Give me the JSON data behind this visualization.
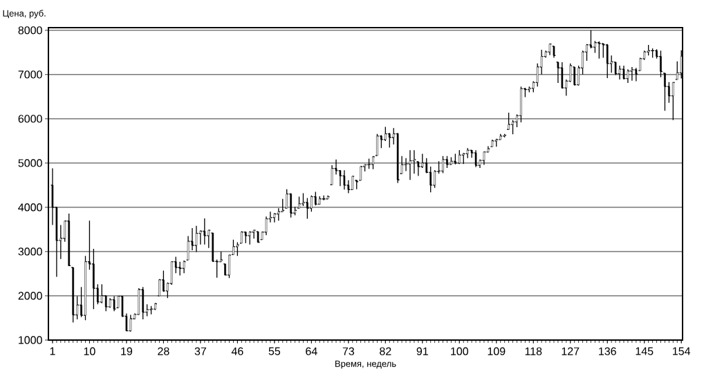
{
  "chart_data": {
    "type": "candlestick",
    "xlabel": "Время, недель",
    "ylabel": "Цена, руб.",
    "xlim": [
      0,
      154.3
    ],
    "ylim": [
      1000,
      8060
    ],
    "xticks": [
      1,
      10,
      19,
      28,
      37,
      46,
      55,
      64,
      73,
      82,
      91,
      100,
      109,
      118,
      127,
      136,
      145,
      154
    ],
    "yticks": [
      1000,
      2000,
      3000,
      4000,
      5000,
      6000,
      7000,
      8000
    ],
    "grid": "y",
    "x": [
      1,
      2,
      3,
      4,
      5,
      6,
      7,
      8,
      9,
      10,
      11,
      12,
      13,
      14,
      15,
      16,
      17,
      18,
      19,
      20,
      21,
      22,
      23,
      24,
      25,
      26,
      27,
      28,
      29,
      30,
      31,
      32,
      33,
      34,
      35,
      36,
      37,
      38,
      39,
      40,
      41,
      42,
      43,
      44,
      45,
      46,
      47,
      48,
      49,
      50,
      51,
      52,
      53,
      54,
      55,
      56,
      57,
      58,
      59,
      60,
      61,
      62,
      63,
      64,
      65,
      66,
      67,
      68,
      69,
      70,
      71,
      72,
      73,
      74,
      75,
      76,
      77,
      78,
      79,
      80,
      81,
      82,
      83,
      84,
      85,
      86,
      87,
      88,
      89,
      90,
      91,
      92,
      93,
      94,
      95,
      96,
      97,
      98,
      99,
      100,
      101,
      102,
      103,
      104,
      105,
      106,
      107,
      108,
      109,
      110,
      111,
      112,
      113,
      114,
      115,
      116,
      117,
      118,
      119,
      120,
      121,
      122,
      123,
      124,
      125,
      126,
      127,
      128,
      129,
      130,
      131,
      132,
      133,
      134,
      135,
      136,
      137,
      138,
      139,
      140,
      141,
      142,
      143,
      144,
      145,
      146,
      147,
      148,
      149,
      150,
      151,
      152,
      153,
      154
    ],
    "ohlc": [
      [
        4500,
        4880,
        3600,
        4000
      ],
      [
        4000,
        4000,
        2430,
        3250
      ],
      [
        3250,
        3600,
        2830,
        3300
      ],
      [
        3300,
        3700,
        3220,
        3690
      ],
      [
        3690,
        3860,
        2670,
        2680
      ],
      [
        2640,
        2640,
        1400,
        1570
      ],
      [
        1570,
        1990,
        1470,
        1790
      ],
      [
        1790,
        2200,
        1520,
        1560
      ],
      [
        1560,
        2900,
        1450,
        2770
      ],
      [
        2770,
        3700,
        2590,
        2720
      ],
      [
        2720,
        3060,
        1700,
        2170
      ],
      [
        2170,
        2260,
        1810,
        1860
      ],
      [
        1860,
        2260,
        1830,
        2000
      ],
      [
        2000,
        2000,
        1650,
        1750
      ],
      [
        1750,
        1950,
        1730,
        1910
      ],
      [
        1910,
        1990,
        1650,
        1700
      ],
      [
        1730,
        2000,
        1730,
        1990
      ],
      [
        1990,
        1990,
        1520,
        1540
      ],
      [
        1540,
        1600,
        1200,
        1210
      ],
      [
        1210,
        1570,
        1190,
        1480
      ],
      [
        1480,
        1600,
        1470,
        1580
      ],
      [
        1580,
        2170,
        1570,
        2140
      ],
      [
        2140,
        2200,
        1470,
        1630
      ],
      [
        1630,
        1810,
        1540,
        1690
      ],
      [
        1690,
        1770,
        1580,
        1700
      ],
      [
        1700,
        1840,
        1680,
        1820
      ],
      [
        2000,
        2380,
        2000,
        2360
      ],
      [
        2360,
        2570,
        2090,
        2110
      ],
      [
        2110,
        2300,
        1950,
        2280
      ],
      [
        2280,
        2780,
        2250,
        2770
      ],
      [
        2770,
        2880,
        2510,
        2640
      ],
      [
        2640,
        2770,
        2460,
        2620
      ],
      [
        2620,
        2800,
        2510,
        2770
      ],
      [
        2810,
        3350,
        2810,
        3230
      ],
      [
        3230,
        3530,
        3030,
        3140
      ],
      [
        3140,
        3580,
        2990,
        3410
      ],
      [
        3410,
        3480,
        3160,
        3460
      ],
      [
        3460,
        3750,
        3160,
        3360
      ],
      [
        3360,
        3490,
        3080,
        3480
      ],
      [
        3420,
        3420,
        2770,
        2780
      ],
      [
        2780,
        2820,
        2410,
        2770
      ],
      [
        2770,
        3000,
        2770,
        2810
      ],
      [
        2720,
        2720,
        2460,
        2470
      ],
      [
        2470,
        2930,
        2400,
        2920
      ],
      [
        2930,
        3270,
        2930,
        3110
      ],
      [
        3110,
        3210,
        2900,
        3150
      ],
      [
        3190,
        3460,
        3190,
        3440
      ],
      [
        3440,
        3450,
        3190,
        3360
      ],
      [
        3360,
        3460,
        3160,
        3440
      ],
      [
        3440,
        3490,
        3290,
        3480
      ],
      [
        3450,
        3450,
        3200,
        3210
      ],
      [
        3270,
        3450,
        3270,
        3440
      ],
      [
        3440,
        3790,
        3370,
        3740
      ],
      [
        3740,
        3900,
        3660,
        3770
      ],
      [
        3770,
        3870,
        3660,
        3850
      ],
      [
        3850,
        3980,
        3700,
        3900
      ],
      [
        3900,
        4190,
        3900,
        3930
      ],
      [
        3980,
        4410,
        3980,
        4300
      ],
      [
        4300,
        4320,
        3770,
        3870
      ],
      [
        3870,
        4010,
        3820,
        3930
      ],
      [
        3980,
        4240,
        3980,
        4080
      ],
      [
        4080,
        4320,
        4030,
        4110
      ],
      [
        4110,
        4210,
        3740,
        3980
      ],
      [
        3980,
        4270,
        3900,
        4240
      ],
      [
        4240,
        4350,
        4040,
        4070
      ],
      [
        4070,
        4250,
        4060,
        4190
      ],
      [
        4190,
        4270,
        4160,
        4190
      ],
      [
        4190,
        4270,
        4190,
        4240
      ],
      [
        4510,
        4950,
        4510,
        4880
      ],
      [
        4880,
        5080,
        4740,
        4830
      ],
      [
        4830,
        4840,
        4480,
        4710
      ],
      [
        4710,
        4840,
        4400,
        4500
      ],
      [
        4500,
        4610,
        4320,
        4400
      ],
      [
        4400,
        4710,
        4400,
        4700
      ],
      [
        4610,
        4610,
        4410,
        4580
      ],
      [
        4610,
        4930,
        4610,
        4920
      ],
      [
        4920,
        4970,
        4810,
        4960
      ],
      [
        4960,
        5100,
        4870,
        4970
      ],
      [
        4970,
        5160,
        4860,
        5140
      ],
      [
        5170,
        5660,
        5170,
        5610
      ],
      [
        5610,
        5630,
        5340,
        5530
      ],
      [
        5530,
        5820,
        5500,
        5660
      ],
      [
        5660,
        5680,
        5350,
        5580
      ],
      [
        5580,
        5790,
        5420,
        5660
      ],
      [
        5660,
        5680,
        4550,
        4620
      ],
      [
        4760,
        5160,
        4760,
        4960
      ],
      [
        4960,
        5110,
        4820,
        4980
      ],
      [
        4980,
        5290,
        4620,
        5050
      ],
      [
        5050,
        5290,
        4760,
        5080
      ],
      [
        5030,
        5030,
        4710,
        4920
      ],
      [
        4920,
        5210,
        4890,
        5000
      ],
      [
        5000,
        5110,
        4770,
        4790
      ],
      [
        4790,
        4920,
        4340,
        4500
      ],
      [
        4500,
        4840,
        4440,
        4810
      ],
      [
        4810,
        5040,
        4760,
        4820
      ],
      [
        4820,
        5160,
        4770,
        5080
      ],
      [
        5080,
        5160,
        4890,
        4970
      ],
      [
        4970,
        5130,
        4960,
        5040
      ],
      [
        5040,
        5210,
        4970,
        5000
      ],
      [
        5000,
        5290,
        4980,
        5180
      ],
      [
        5180,
        5230,
        4980,
        5210
      ],
      [
        5210,
        5340,
        5110,
        5290
      ],
      [
        5290,
        5290,
        5120,
        5230
      ],
      [
        5230,
        5290,
        4910,
        4950
      ],
      [
        4950,
        5080,
        4890,
        5060
      ],
      [
        5060,
        5260,
        4960,
        5250
      ],
      [
        5250,
        5380,
        5240,
        5320
      ],
      [
        5370,
        5530,
        5370,
        5500
      ],
      [
        5500,
        5550,
        5370,
        5530
      ],
      [
        5530,
        5660,
        5530,
        5610
      ],
      [
        5610,
        5660,
        5580,
        5630
      ],
      [
        5760,
        6140,
        5760,
        5870
      ],
      [
        5870,
        5970,
        5650,
        5930
      ],
      [
        5930,
        6100,
        5810,
        6070
      ],
      [
        6070,
        6730,
        5920,
        6680
      ],
      [
        6680,
        6700,
        6490,
        6660
      ],
      [
        6660,
        6730,
        6600,
        6690
      ],
      [
        6690,
        6850,
        6600,
        6820
      ],
      [
        6820,
        7250,
        6730,
        7170
      ],
      [
        7170,
        7560,
        7000,
        7410
      ],
      [
        7410,
        7540,
        7380,
        7510
      ],
      [
        7510,
        7700,
        7440,
        7690
      ],
      [
        7640,
        7640,
        7380,
        7430
      ],
      [
        7280,
        7280,
        6810,
        7150
      ],
      [
        7150,
        7280,
        6680,
        6700
      ],
      [
        6700,
        6890,
        6520,
        6850
      ],
      [
        6850,
        7250,
        6830,
        7200
      ],
      [
        7170,
        7170,
        6750,
        6770
      ],
      [
        6770,
        7200,
        6750,
        7150
      ],
      [
        7150,
        7540,
        7000,
        7510
      ],
      [
        7510,
        7690,
        7310,
        7670
      ],
      [
        7670,
        8000,
        7590,
        7620
      ],
      [
        7620,
        7760,
        7490,
        7720
      ],
      [
        7720,
        7750,
        7360,
        7700
      ],
      [
        7700,
        7700,
        7380,
        7670
      ],
      [
        7670,
        7690,
        6920,
        7250
      ],
      [
        7250,
        7430,
        7040,
        7290
      ],
      [
        7280,
        7280,
        6990,
        7020
      ],
      [
        7020,
        7200,
        6890,
        7120
      ],
      [
        7120,
        7200,
        6890,
        6910
      ],
      [
        6910,
        7120,
        6810,
        7080
      ],
      [
        7080,
        7170,
        6860,
        7110
      ],
      [
        7110,
        7150,
        6850,
        7010
      ],
      [
        7090,
        7380,
        7090,
        7360
      ],
      [
        7360,
        7540,
        7330,
        7510
      ],
      [
        7510,
        7670,
        7430,
        7540
      ],
      [
        7540,
        7590,
        7380,
        7540
      ],
      [
        7540,
        7570,
        7360,
        7410
      ],
      [
        7410,
        7540,
        6940,
        7070
      ],
      [
        7030,
        7030,
        6180,
        6730
      ],
      [
        6730,
        6830,
        6360,
        6520
      ],
      [
        6520,
        6830,
        5970,
        6820
      ],
      [
        6890,
        7300,
        6890,
        7040
      ],
      [
        7040,
        7550,
        6910,
        7410
      ]
    ]
  }
}
